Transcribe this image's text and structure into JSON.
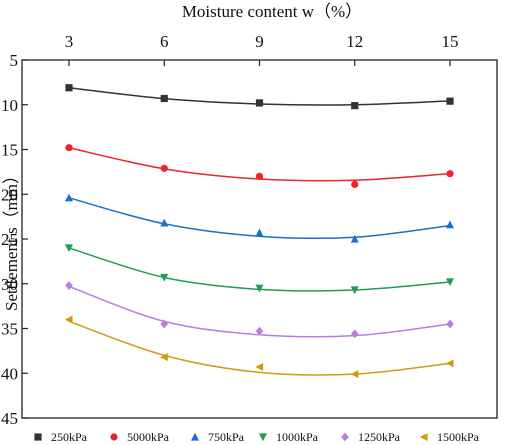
{
  "chart_data": {
    "type": "scatter",
    "title": "",
    "xlabel": "Moisture content w（%）",
    "ylabel": "Settlement s（mm）",
    "xlim": [
      3,
      15
    ],
    "ylim": [
      5,
      45
    ],
    "y_inverted": true,
    "x_axis_position": "top",
    "x_ticks": [
      "3",
      "6",
      "9",
      "12",
      "15"
    ],
    "y_ticks": [
      "5",
      "10",
      "15",
      "20",
      "25",
      "30",
      "35",
      "40",
      "45"
    ],
    "grid": false,
    "legend_position": "bottom",
    "x": [
      3,
      6,
      9,
      12,
      15
    ],
    "series": [
      {
        "name": "250kPa",
        "marker": "square",
        "color": "#333333",
        "values": [
          8.1,
          9.3,
          9.8,
          10.1,
          9.6
        ],
        "fit": [
          8.1,
          9.32,
          9.92,
          10.0,
          9.57
        ]
      },
      {
        "name": "5000kPa",
        "marker": "circle",
        "color": "#e8262b",
        "values": [
          14.8,
          17.1,
          18.0,
          18.9,
          17.7
        ],
        "fit": [
          14.8,
          17.16,
          18.3,
          18.43,
          17.7
        ]
      },
      {
        "name": "750kPa",
        "marker": "triangle-up",
        "color": "#1a6fd4",
        "values": [
          20.4,
          23.2,
          24.3,
          25.0,
          23.4
        ],
        "fit": [
          20.4,
          23.3,
          24.7,
          24.8,
          23.5
        ]
      },
      {
        "name": "1000kPa",
        "marker": "triangle-down",
        "color": "#1f9d55",
        "values": [
          26.0,
          29.3,
          30.5,
          30.7,
          29.8
        ],
        "fit": [
          26.0,
          29.3,
          30.63,
          30.7,
          29.8
        ]
      },
      {
        "name": "1250kPa",
        "marker": "diamond",
        "color": "#b77ee0",
        "values": [
          30.2,
          34.5,
          35.3,
          35.6,
          34.5
        ],
        "fit": [
          30.3,
          34.2,
          35.7,
          35.8,
          34.5
        ]
      },
      {
        "name": "1500kPa",
        "marker": "triangle-left",
        "color": "#d19a13",
        "values": [
          34.0,
          38.2,
          39.3,
          40.1,
          38.9
        ],
        "fit": [
          34.2,
          38.0,
          39.9,
          40.1,
          38.9
        ]
      }
    ]
  }
}
